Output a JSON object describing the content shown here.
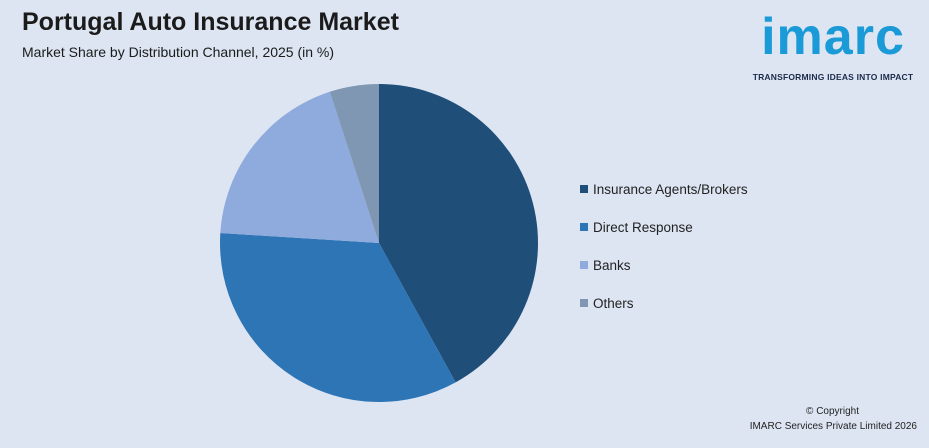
{
  "header": {
    "title": "Portugal Auto Insurance Market",
    "subtitle": "Market Share by Distribution Channel, 2025 (in %)"
  },
  "logo": {
    "word": "imarc",
    "tagline": "TRANSFORMING IDEAS INTO IMPACT",
    "color": "#1a9ad6"
  },
  "footer": {
    "copyright": "© Copyright",
    "company": "IMARC Services Private Limited 2026"
  },
  "chart_data": {
    "type": "pie",
    "title": "Portugal Auto Insurance Market",
    "subtitle": "Market Share by Distribution Channel, 2025 (in %)",
    "legend_position": "right",
    "categories": [
      "Insurance Agents/Brokers",
      "Direct Response",
      "Banks",
      "Others"
    ],
    "values": [
      42,
      34,
      19,
      5
    ],
    "colors": [
      "#1f4e79",
      "#2e75b6",
      "#8faadc",
      "#7f97b2"
    ]
  }
}
